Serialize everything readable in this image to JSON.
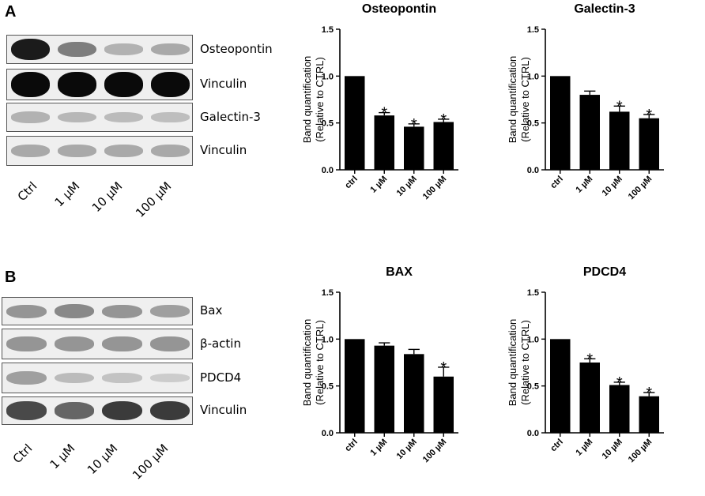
{
  "panel_letters": [
    "A",
    "B"
  ],
  "blots": {
    "A": {
      "rows": [
        {
          "label": "Osteopontin",
          "intensity": [
            0.95,
            0.6,
            0.35,
            0.4
          ]
        },
        {
          "label": "Vinculin",
          "intensity": [
            1.0,
            1.0,
            1.0,
            1.0
          ]
        },
        {
          "label": "Galectin-3",
          "intensity": [
            0.35,
            0.32,
            0.3,
            0.28
          ]
        },
        {
          "label": "Vinculin",
          "intensity": [
            0.4,
            0.4,
            0.4,
            0.4
          ]
        }
      ],
      "lanes": [
        "Ctrl",
        "1 µM",
        "10 µM",
        "100 µM"
      ]
    },
    "B": {
      "rows": [
        {
          "label": "Bax",
          "intensity": [
            0.5,
            0.55,
            0.5,
            0.45
          ]
        },
        {
          "label": "β-actin",
          "intensity": [
            0.5,
            0.5,
            0.5,
            0.5
          ]
        },
        {
          "label": "PDCD4",
          "intensity": [
            0.45,
            0.3,
            0.25,
            0.18
          ]
        },
        {
          "label": "Vinculin",
          "intensity": [
            0.8,
            0.7,
            0.85,
            0.85
          ]
        }
      ],
      "lanes": [
        "Ctrl",
        "1 µM",
        "10 µM",
        "100 µM"
      ]
    }
  },
  "chart_data": [
    {
      "type": "bar",
      "title": "Osteopontin",
      "ylabel": [
        "Band quantification",
        "(Relative to CTRL)"
      ],
      "categories": [
        "ctrl",
        "1 µM",
        "10 µM",
        "100 µM"
      ],
      "values": [
        1.0,
        0.58,
        0.46,
        0.51
      ],
      "errors": [
        0,
        0.03,
        0.03,
        0.03
      ],
      "significant": [
        false,
        true,
        true,
        true
      ],
      "ylim": [
        0,
        1.5
      ],
      "yticks": [
        "0.0",
        "0.5",
        "1.0",
        "1.5"
      ],
      "color": "#000000"
    },
    {
      "type": "bar",
      "title": "Galectin-3",
      "ylabel": [
        "Band quantification",
        "(Relative to CTRL)"
      ],
      "categories": [
        "ctrl",
        "1 µM",
        "10 µM",
        "100 µM"
      ],
      "values": [
        1.0,
        0.8,
        0.62,
        0.55
      ],
      "errors": [
        0,
        0.04,
        0.06,
        0.04
      ],
      "significant": [
        false,
        false,
        true,
        true
      ],
      "ylim": [
        0,
        1.5
      ],
      "yticks": [
        "0.0",
        "0.5",
        "1.0",
        "1.5"
      ],
      "color": "#000000"
    },
    {
      "type": "bar",
      "title": "BAX",
      "ylabel": [
        "Band quantification",
        "(Relative to CTRL)"
      ],
      "categories": [
        "ctrl",
        "1 µM",
        "10 µM",
        "100 µM"
      ],
      "values": [
        1.0,
        0.93,
        0.84,
        0.6
      ],
      "errors": [
        0,
        0.03,
        0.05,
        0.1
      ],
      "significant": [
        false,
        false,
        false,
        true
      ],
      "ylim": [
        0,
        1.5
      ],
      "yticks": [
        "0.0",
        "0.5",
        "1.0",
        "1.5"
      ],
      "color": "#000000"
    },
    {
      "type": "bar",
      "title": "PDCD4",
      "ylabel": [
        "Band quantification",
        "(Relative to CTRL)"
      ],
      "categories": [
        "ctrl",
        "1 µM",
        "10 µM",
        "100 µM"
      ],
      "values": [
        1.0,
        0.75,
        0.51,
        0.39
      ],
      "errors": [
        0,
        0.04,
        0.03,
        0.04
      ],
      "significant": [
        false,
        true,
        true,
        true
      ],
      "ylim": [
        0,
        1.5
      ],
      "yticks": [
        "0.0",
        "0.5",
        "1.0",
        "1.5"
      ],
      "color": "#000000"
    }
  ],
  "significance_marker": "*"
}
